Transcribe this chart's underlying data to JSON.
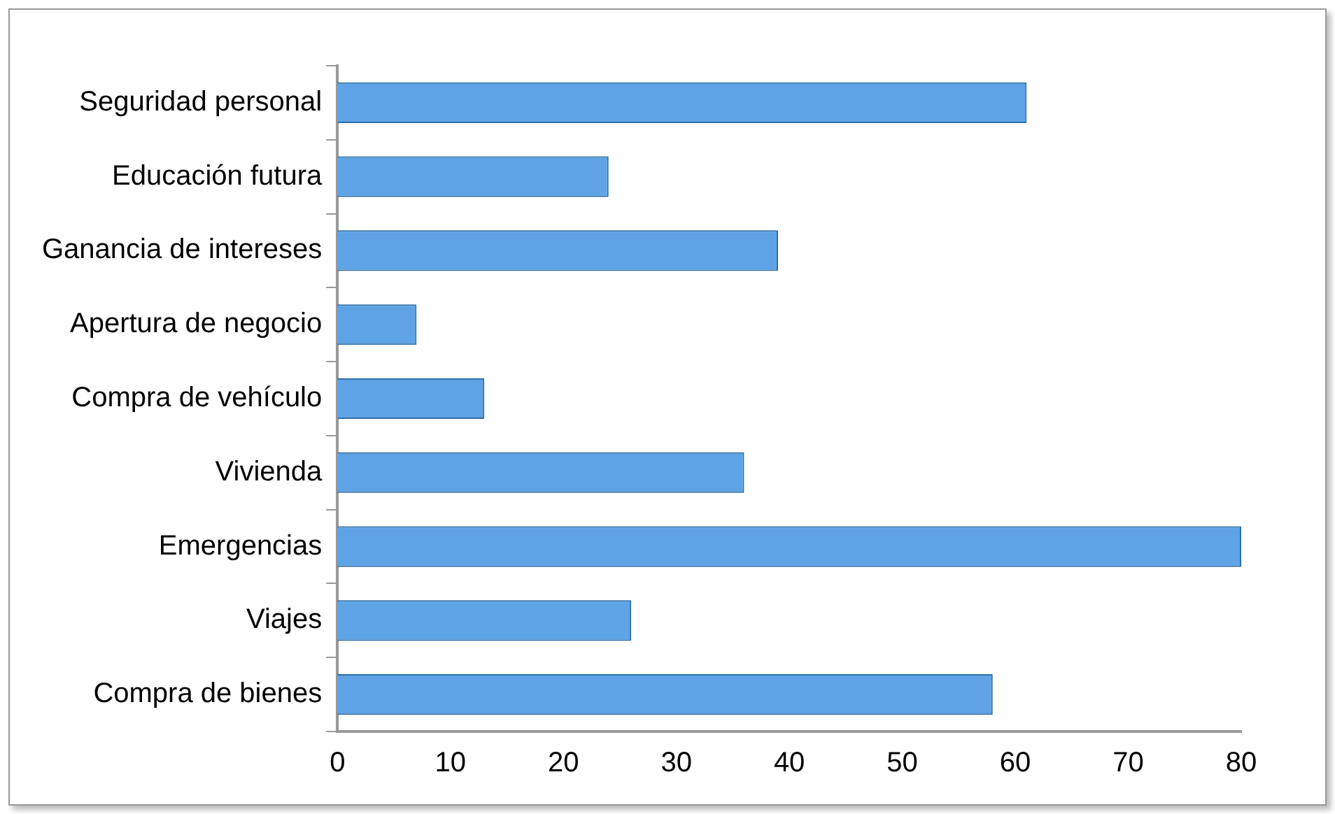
{
  "chart_data": {
    "type": "bar",
    "orientation": "horizontal",
    "categories": [
      "Seguridad personal",
      "Educación futura",
      "Ganancia de intereses",
      "Apertura de negocio",
      "Compra de vehículo",
      "Vivienda",
      "Emergencias",
      "Viajes",
      "Compra de bienes"
    ],
    "values": [
      61,
      24,
      39,
      7,
      13,
      36,
      80,
      26,
      58
    ],
    "color": "#5ea3e6",
    "xlim": [
      0,
      80
    ],
    "xticks": [
      0,
      10,
      20,
      30,
      40,
      50,
      60,
      70,
      80
    ],
    "grid": false,
    "legend": false
  }
}
